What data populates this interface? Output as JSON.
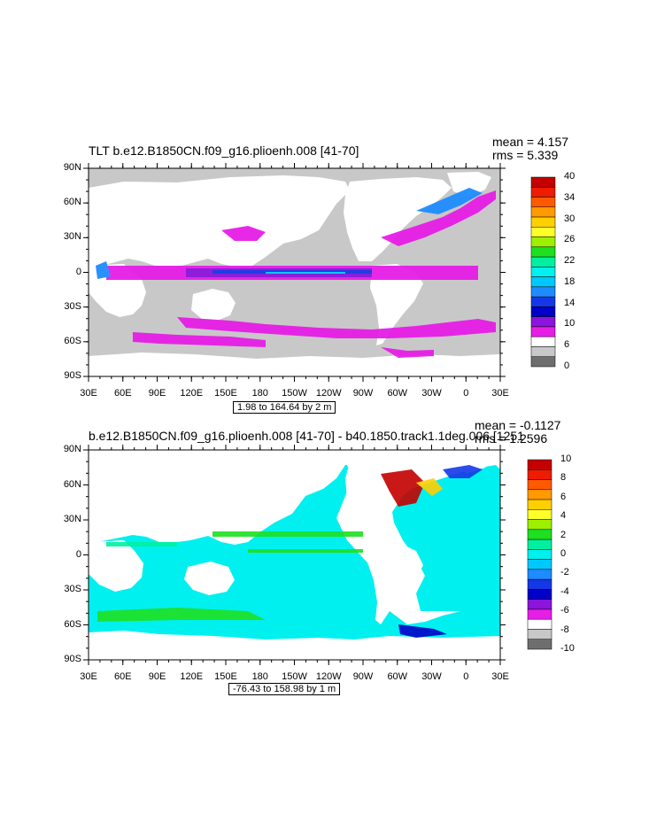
{
  "panels": [
    {
      "title": "TLT b.e12.B1850CN.f09_g16.plioenh.008 [41-70]",
      "stats": {
        "mean": "mean = 4.157",
        "rms": "rms = 5.339"
      },
      "range_label": "1.98 to 164.64 by 2 m",
      "colorbar": {
        "labels": [
          "40",
          "34",
          "30",
          "26",
          "22",
          "18",
          "14",
          "10",
          "6",
          "0"
        ],
        "colors": [
          "#c40000",
          "#ee1c00",
          "#ff5a00",
          "#ff9a00",
          "#ffd000",
          "#ffff2a",
          "#9cf000",
          "#1ee020",
          "#00f0a0",
          "#00f0f0",
          "#00c8ff",
          "#1e8cff",
          "#1438e6",
          "#0000c8",
          "#8c14dc",
          "#e61ee6",
          "#ffffff",
          "#c8c8c8",
          "#6e6e6e"
        ]
      }
    },
    {
      "title": "b.e12.B1850CN.f09_g16.plioenh.008 [41-70] - b40.1850.track1.1deg.006 [1251",
      "stats": {
        "mean": "mean = -0.1127",
        "rms": "rms = 1.2596"
      },
      "range_label": "-76.43 to 158.98 by 1 m",
      "colorbar": {
        "labels": [
          "10",
          "8",
          "6",
          "4",
          "2",
          "0",
          "-2",
          "-4",
          "-6",
          "-8",
          "-10"
        ],
        "colors": [
          "#c40000",
          "#ee1c00",
          "#ff5a00",
          "#ff9a00",
          "#ffd000",
          "#ffff2a",
          "#9cf000",
          "#1ee020",
          "#00f0a0",
          "#00f0f0",
          "#00c8ff",
          "#1e8cff",
          "#1438e6",
          "#0000c8",
          "#8c14dc",
          "#e61ee6",
          "#ffffff",
          "#c8c8c8",
          "#6e6e6e"
        ]
      }
    }
  ],
  "axes": {
    "lat_labels": [
      "90N",
      "60N",
      "30N",
      "0",
      "30S",
      "60S",
      "90S"
    ],
    "lon_labels": [
      "30E",
      "60E",
      "90E",
      "120E",
      "150E",
      "180",
      "150W",
      "120W",
      "90W",
      "60W",
      "30W",
      "0",
      "30E"
    ]
  }
}
